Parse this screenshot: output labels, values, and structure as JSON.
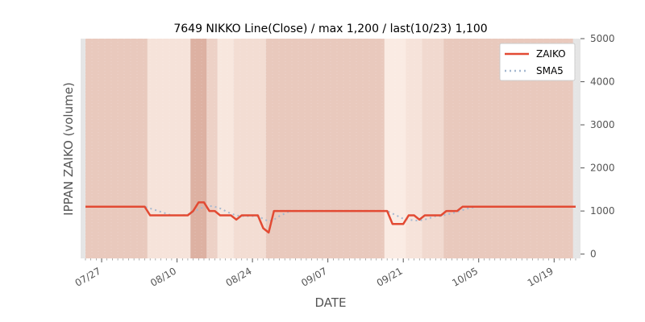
{
  "chart_data": {
    "type": "line",
    "title": "7649 NIKKO Line(Close) / max 1,200 / last(10/23) 1,100",
    "xlabel": "DATE",
    "ylabel": "IPPAN ZAIKO (volume)",
    "ylim": [
      -100,
      5000
    ],
    "y_ticks": [
      "0",
      "1000",
      "2000",
      "3000",
      "4000",
      "5000"
    ],
    "x_ticks": [
      "07/27",
      "08/10",
      "08/24",
      "09/07",
      "09/21",
      "10/05",
      "10/19"
    ],
    "legend_position": "top-right",
    "series": [
      {
        "name": "ZAIKO",
        "color": "#e24a33",
        "values": [
          1100,
          1100,
          1100,
          1100,
          1100,
          1100,
          1100,
          1100,
          1100,
          1100,
          1100,
          1100,
          900,
          900,
          900,
          900,
          900,
          900,
          900,
          900,
          1000,
          1200,
          1200,
          1000,
          1000,
          900,
          900,
          900,
          800,
          900,
          900,
          900,
          900,
          600,
          500,
          1000,
          1000,
          1000,
          1000,
          1000,
          1000,
          1000,
          1000,
          1000,
          1000,
          1000,
          1000,
          1000,
          1000,
          1000,
          1000,
          1000,
          1000,
          1000,
          1000,
          1000,
          1000,
          700,
          700,
          700,
          900,
          900,
          800,
          900,
          900,
          900,
          900,
          1000,
          1000,
          1000,
          1100,
          1100,
          1100,
          1100,
          1100,
          1100,
          1100,
          1100,
          1100,
          1100,
          1100,
          1100,
          1100,
          1100,
          1100,
          1100,
          1100,
          1100,
          1100,
          1100,
          1100,
          1100
        ]
      },
      {
        "name": "SMA5",
        "color": "#a4b8d0",
        "values": [
          null,
          null,
          null,
          null,
          1100,
          1100,
          1100,
          1100,
          1100,
          1100,
          1100,
          1100,
          1060,
          1020,
          980,
          940,
          900,
          900,
          900,
          920,
          980,
          1040,
          1100,
          1120,
          1100,
          1060,
          1000,
          940,
          900,
          880,
          880,
          880,
          880,
          820,
          760,
          800,
          880,
          940,
          1000,
          1000,
          1000,
          1000,
          1000,
          1000,
          1000,
          1000,
          1000,
          1000,
          1000,
          1000,
          1000,
          1000,
          1000,
          1000,
          1000,
          1000,
          1000,
          940,
          880,
          820,
          800,
          780,
          780,
          800,
          840,
          880,
          880,
          920,
          940,
          980,
          1020,
          1060,
          1080,
          1100,
          1100,
          1100,
          1100,
          1100,
          1100,
          1100,
          1100,
          1100,
          1100,
          1100,
          1100,
          1100,
          1100,
          1100,
          1100,
          1100,
          1100,
          1100
        ]
      }
    ],
    "x_tick_index": [
      3,
      17,
      31,
      45,
      59,
      73,
      87
    ],
    "background_bands": [
      {
        "from": 0,
        "to": 12,
        "intensity": 0.55
      },
      {
        "from": 12,
        "to": 20,
        "intensity": 0.22
      },
      {
        "from": 20,
        "to": 23,
        "intensity": 0.85
      },
      {
        "from": 23,
        "to": 25,
        "intensity": 0.45
      },
      {
        "from": 25,
        "to": 28,
        "intensity": 0.18
      },
      {
        "from": 28,
        "to": 34,
        "intensity": 0.3
      },
      {
        "from": 34,
        "to": 56,
        "intensity": 0.55
      },
      {
        "from": 56,
        "to": 60,
        "intensity": 0.12
      },
      {
        "from": 60,
        "to": 63,
        "intensity": 0.22
      },
      {
        "from": 63,
        "to": 67,
        "intensity": 0.35
      },
      {
        "from": 67,
        "to": 91,
        "intensity": 0.55
      }
    ]
  }
}
